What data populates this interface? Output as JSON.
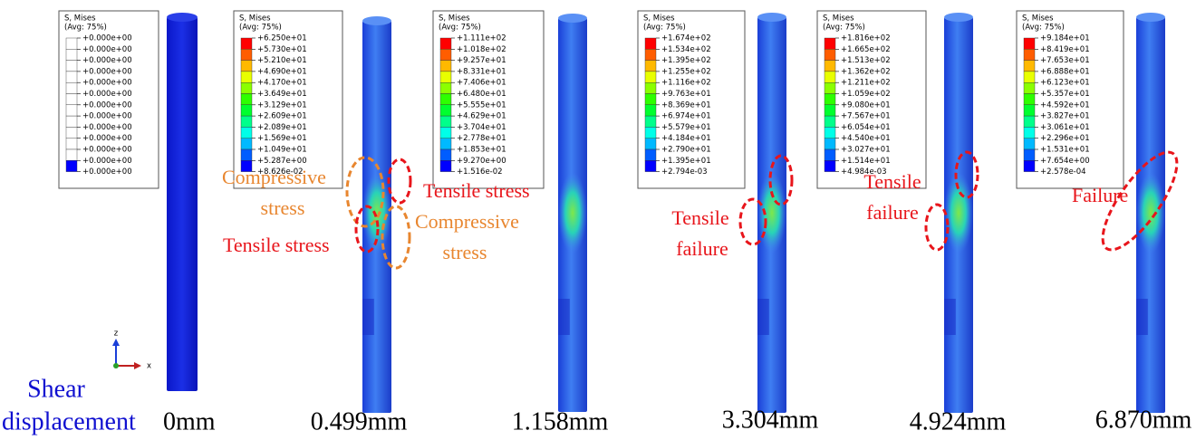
{
  "legend": {
    "title": "S, Mises",
    "subtitle": "(Avg: 75%)"
  },
  "panels": [
    {
      "displacement": "0mm",
      "legend_values": [
        "+0.000e+00",
        "+0.000e+00",
        "+0.000e+00",
        "+0.000e+00",
        "+0.000e+00",
        "+0.000e+00",
        "+0.000e+00",
        "+0.000e+00",
        "+0.000e+00",
        "+0.000e+00",
        "+0.000e+00",
        "+0.000e+00",
        "+0.000e+00"
      ]
    },
    {
      "displacement": "0.499mm",
      "legend_values": [
        "+6.250e+01",
        "+5.730e+01",
        "+5.210e+01",
        "+4.690e+01",
        "+4.170e+01",
        "+3.649e+01",
        "+3.129e+01",
        "+2.609e+01",
        "+2.089e+01",
        "+1.569e+01",
        "+1.049e+01",
        "+5.287e+00",
        "+8.626e-02"
      ],
      "annotations": [
        {
          "lines": [
            "Compressive",
            "stress"
          ]
        },
        {
          "lines": [
            "Tensile stress"
          ]
        },
        {
          "lines": [
            "Tensile stress"
          ]
        },
        {
          "lines": [
            "Compressive",
            "stress"
          ]
        }
      ]
    },
    {
      "displacement": "1.158mm",
      "legend_values": [
        "+1.111e+02",
        "+1.018e+02",
        "+9.257e+01",
        "+8.331e+01",
        "+7.406e+01",
        "+6.480e+01",
        "+5.555e+01",
        "+4.629e+01",
        "+3.704e+01",
        "+2.778e+01",
        "+1.853e+01",
        "+9.270e+00",
        "+1.516e-02"
      ]
    },
    {
      "displacement": "3.304mm",
      "legend_values": [
        "+1.674e+02",
        "+1.534e+02",
        "+1.395e+02",
        "+1.255e+02",
        "+1.116e+02",
        "+9.763e+01",
        "+8.369e+01",
        "+6.974e+01",
        "+5.579e+01",
        "+4.184e+01",
        "+2.790e+01",
        "+1.395e+01",
        "+2.794e-03"
      ],
      "annotations": [
        {
          "lines": [
            "Tensile",
            "failure"
          ]
        }
      ]
    },
    {
      "displacement": "4.924mm",
      "legend_values": [
        "+1.816e+02",
        "+1.665e+02",
        "+1.513e+02",
        "+1.362e+02",
        "+1.211e+02",
        "+1.059e+02",
        "+9.080e+01",
        "+7.567e+01",
        "+6.054e+01",
        "+4.540e+01",
        "+3.027e+01",
        "+1.514e+01",
        "+4.984e-03"
      ],
      "annotations": [
        {
          "lines": [
            "Tensile",
            "failure"
          ]
        }
      ]
    },
    {
      "displacement": "6.870mm",
      "legend_values": [
        "+9.184e+01",
        "+8.419e+01",
        "+7.653e+01",
        "+6.888e+01",
        "+6.123e+01",
        "+5.357e+01",
        "+4.592e+01",
        "+3.827e+01",
        "+3.061e+01",
        "+2.296e+01",
        "+1.531e+01",
        "+7.654e+00",
        "+2.578e-04"
      ],
      "annotations": [
        {
          "lines": [
            "Failure"
          ]
        }
      ]
    }
  ],
  "axis_label": [
    "Shear",
    "displacement"
  ],
  "triad": [
    "z",
    "x"
  ]
}
